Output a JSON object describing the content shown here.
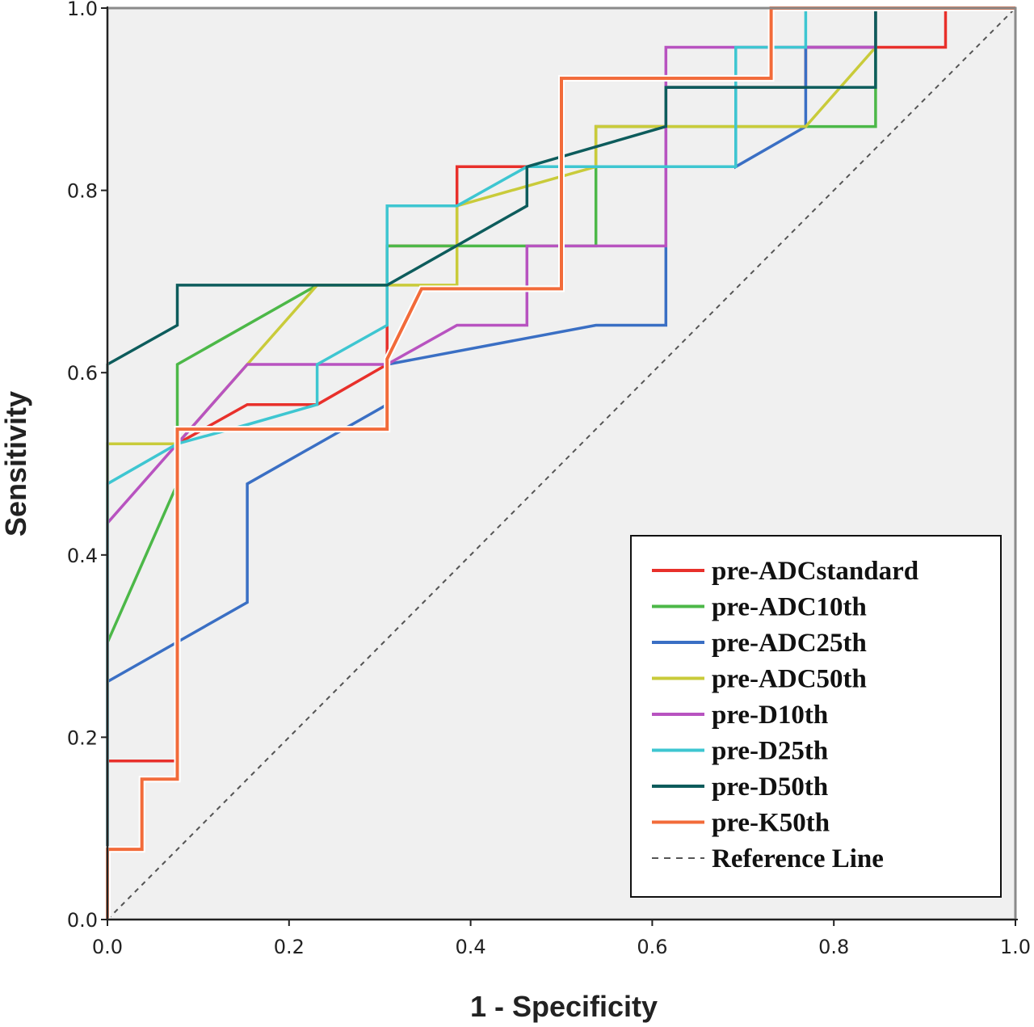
{
  "chart_data": {
    "type": "line",
    "xlabel": "1 - Specificity",
    "ylabel": "Sensitivity",
    "xlim": [
      0,
      1
    ],
    "ylim": [
      0,
      1
    ],
    "x_ticks": [
      "0.0",
      "0.2",
      "0.4",
      "0.6",
      "0.8",
      "1.0"
    ],
    "y_ticks": [
      "0.0",
      "0.2",
      "0.4",
      "0.6",
      "0.8",
      "1.0"
    ],
    "grid": false,
    "legend_position": "bottom-right",
    "background_color": "#f0f0f0",
    "series": [
      {
        "name": "pre-ADCstandard",
        "color": "#e8302b",
        "points": [
          [
            0,
            0
          ],
          [
            0,
            0.174
          ],
          [
            0.077,
            0.174
          ],
          [
            0.077,
            0.522
          ],
          [
            0.154,
            0.565
          ],
          [
            0.231,
            0.565
          ],
          [
            0.308,
            0.609
          ],
          [
            0.308,
            0.739
          ],
          [
            0.385,
            0.739
          ],
          [
            0.385,
            0.826
          ],
          [
            0.462,
            0.826
          ],
          [
            0.538,
            0.826
          ],
          [
            0.538,
            0.87
          ],
          [
            0.615,
            0.87
          ],
          [
            0.615,
            0.913
          ],
          [
            0.769,
            0.913
          ],
          [
            0.769,
            0.957
          ],
          [
            0.846,
            0.957
          ],
          [
            0.923,
            0.957
          ],
          [
            0.923,
            1.0
          ],
          [
            1.0,
            1.0
          ]
        ]
      },
      {
        "name": "pre-ADC10th",
        "color": "#4cb848",
        "points": [
          [
            0,
            0
          ],
          [
            0,
            0.304
          ],
          [
            0.077,
            0.478
          ],
          [
            0.077,
            0.609
          ],
          [
            0.231,
            0.696
          ],
          [
            0.308,
            0.696
          ],
          [
            0.308,
            0.739
          ],
          [
            0.462,
            0.739
          ],
          [
            0.538,
            0.739
          ],
          [
            0.538,
            0.87
          ],
          [
            0.769,
            0.87
          ],
          [
            0.846,
            0.87
          ],
          [
            0.846,
            0.957
          ],
          [
            0.846,
            1.0
          ],
          [
            1.0,
            1.0
          ]
        ]
      },
      {
        "name": "pre-ADC25th",
        "color": "#3a6fc4",
        "points": [
          [
            0,
            0
          ],
          [
            0,
            0.261
          ],
          [
            0.154,
            0.348
          ],
          [
            0.154,
            0.478
          ],
          [
            0.308,
            0.565
          ],
          [
            0.308,
            0.609
          ],
          [
            0.538,
            0.652
          ],
          [
            0.615,
            0.652
          ],
          [
            0.615,
            0.913
          ],
          [
            0.692,
            0.913
          ],
          [
            0.692,
            0.826
          ],
          [
            0.769,
            0.87
          ],
          [
            0.769,
            0.957
          ],
          [
            0.846,
            0.957
          ],
          [
            0.846,
            1.0
          ],
          [
            1.0,
            1.0
          ]
        ]
      },
      {
        "name": "pre-ADC50th",
        "color": "#c9cb3a",
        "points": [
          [
            0,
            0
          ],
          [
            0,
            0.522
          ],
          [
            0.077,
            0.522
          ],
          [
            0.154,
            0.609
          ],
          [
            0.231,
            0.696
          ],
          [
            0.385,
            0.696
          ],
          [
            0.385,
            0.783
          ],
          [
            0.538,
            0.826
          ],
          [
            0.538,
            0.87
          ],
          [
            0.769,
            0.87
          ],
          [
            0.846,
            0.957
          ],
          [
            0.846,
            1.0
          ],
          [
            1.0,
            1.0
          ]
        ]
      },
      {
        "name": "pre-D10th",
        "color": "#b853c0",
        "points": [
          [
            0,
            0
          ],
          [
            0,
            0.435
          ],
          [
            0.077,
            0.522
          ],
          [
            0.154,
            0.609
          ],
          [
            0.308,
            0.609
          ],
          [
            0.385,
            0.652
          ],
          [
            0.462,
            0.652
          ],
          [
            0.462,
            0.739
          ],
          [
            0.615,
            0.739
          ],
          [
            0.615,
            0.957
          ],
          [
            0.846,
            0.957
          ],
          [
            0.846,
            1.0
          ],
          [
            1.0,
            1.0
          ]
        ]
      },
      {
        "name": "pre-D25th",
        "color": "#3ec6d1",
        "points": [
          [
            0,
            0
          ],
          [
            0,
            0.478
          ],
          [
            0.077,
            0.522
          ],
          [
            0.154,
            0.543
          ],
          [
            0.231,
            0.565
          ],
          [
            0.231,
            0.609
          ],
          [
            0.308,
            0.652
          ],
          [
            0.308,
            0.783
          ],
          [
            0.385,
            0.783
          ],
          [
            0.462,
            0.826
          ],
          [
            0.692,
            0.826
          ],
          [
            0.692,
            0.957
          ],
          [
            0.769,
            0.957
          ],
          [
            0.769,
            1.0
          ],
          [
            1.0,
            1.0
          ]
        ]
      },
      {
        "name": "pre-D50th",
        "color": "#0d5c5c",
        "points": [
          [
            0,
            0
          ],
          [
            0,
            0.609
          ],
          [
            0.077,
            0.652
          ],
          [
            0.077,
            0.696
          ],
          [
            0.308,
            0.696
          ],
          [
            0.462,
            0.783
          ],
          [
            0.462,
            0.826
          ],
          [
            0.615,
            0.87
          ],
          [
            0.615,
            0.913
          ],
          [
            0.846,
            0.913
          ],
          [
            0.846,
            1.0
          ],
          [
            1.0,
            1.0
          ]
        ]
      },
      {
        "name": "pre-K50th",
        "color": "#f26b3a",
        "points": [
          [
            0,
            0
          ],
          [
            0,
            0.077
          ],
          [
            0.038,
            0.077
          ],
          [
            0.038,
            0.154
          ],
          [
            0.077,
            0.154
          ],
          [
            0.077,
            0.538
          ],
          [
            0.308,
            0.538
          ],
          [
            0.308,
            0.615
          ],
          [
            0.346,
            0.692
          ],
          [
            0.5,
            0.692
          ],
          [
            0.5,
            0.923
          ],
          [
            0.731,
            0.923
          ],
          [
            0.731,
            1.0
          ],
          [
            1.0,
            1.0
          ]
        ]
      }
    ],
    "reference_line": {
      "name": "Reference Line",
      "color": "#555555",
      "points": [
        [
          0,
          0
        ],
        [
          1,
          1
        ]
      ]
    }
  }
}
